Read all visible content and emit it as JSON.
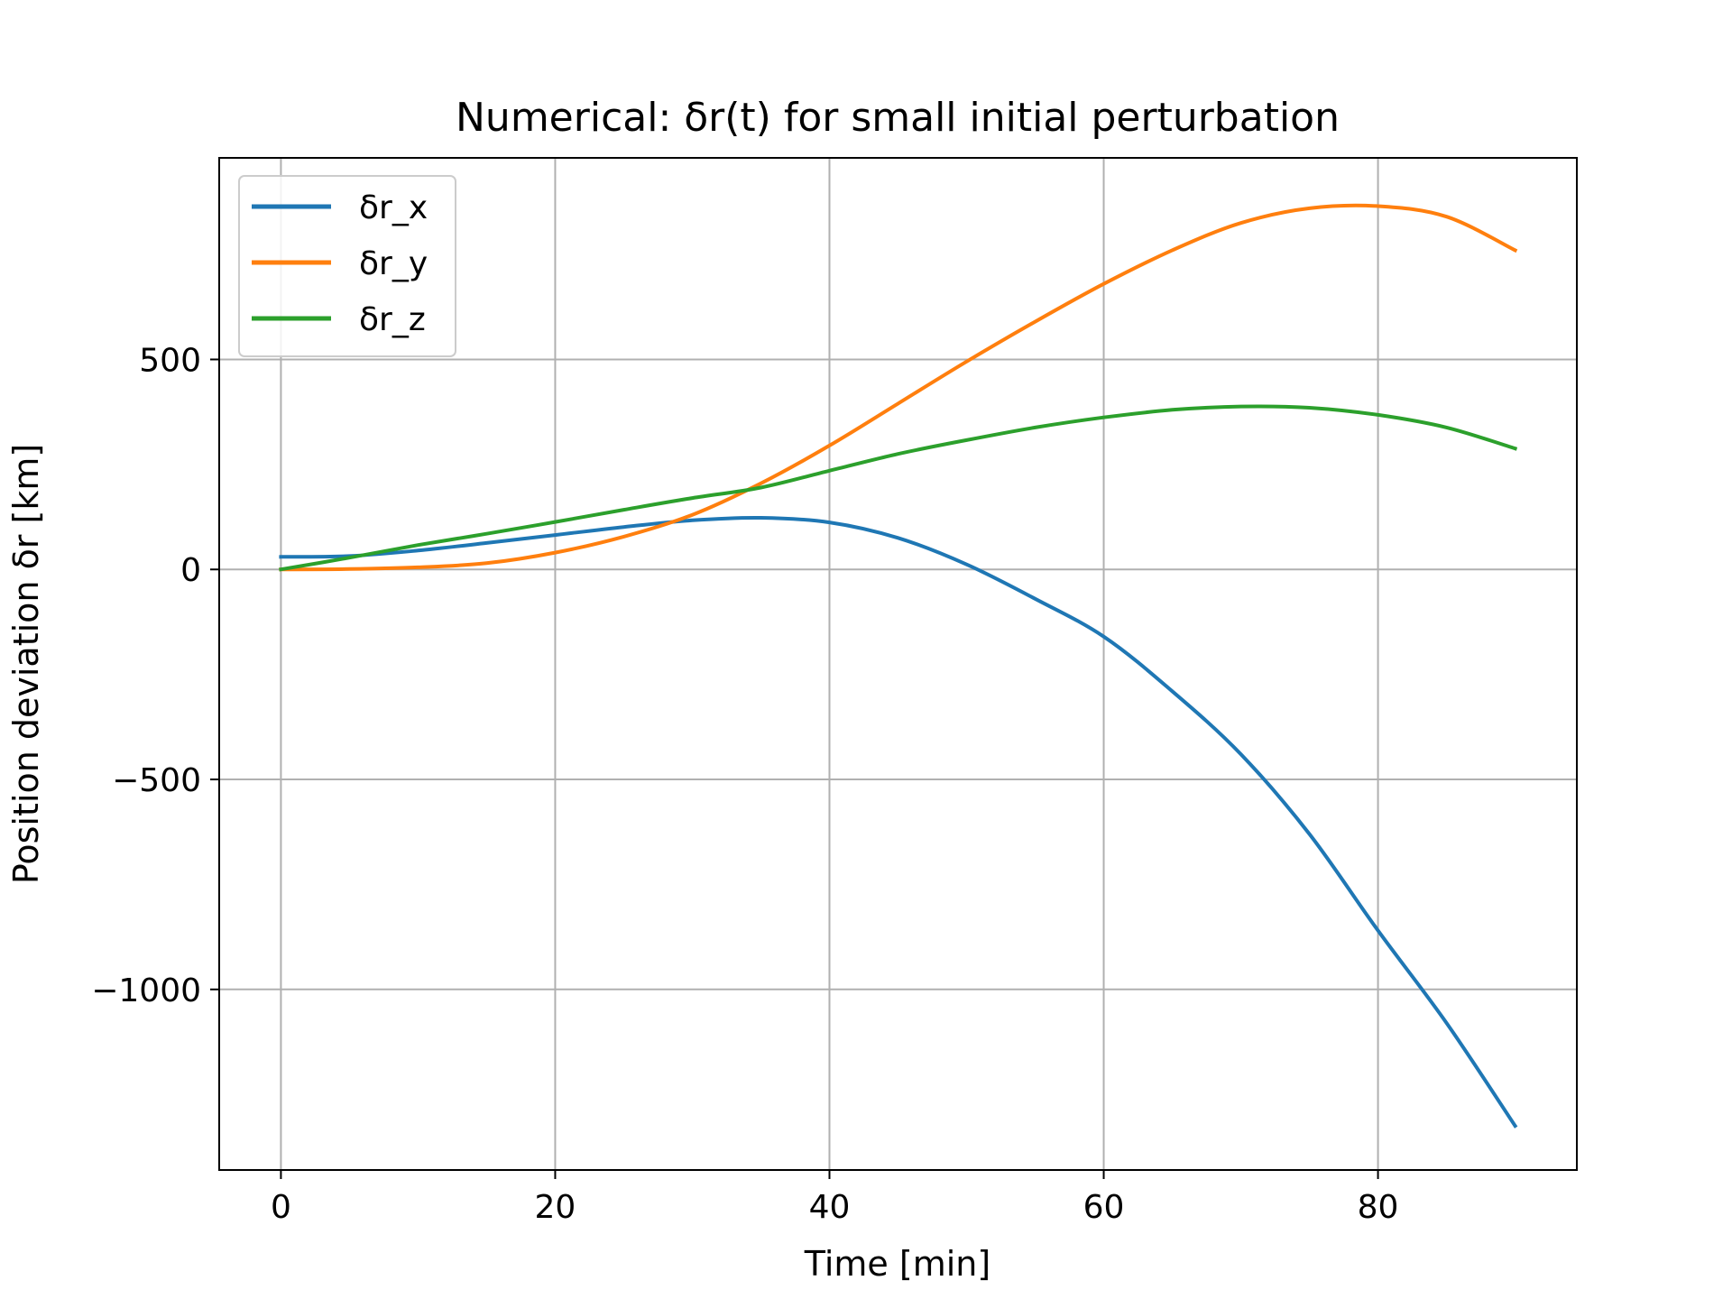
{
  "chart_data": {
    "type": "line",
    "title": "Numerical: δr(t) for small initial perturbation",
    "xlabel": "Time [min]",
    "ylabel": "Position deviation δr [km]",
    "xlim": [
      -4.5,
      94.5
    ],
    "ylim": [
      -1430,
      980
    ],
    "xticks": [
      0,
      20,
      40,
      60,
      80
    ],
    "xtick_labels": [
      "0",
      "20",
      "40",
      "60",
      "80"
    ],
    "yticks": [
      -1000,
      -500,
      0,
      500
    ],
    "ytick_labels": [
      "−1000",
      "−500",
      "0",
      "500"
    ],
    "grid": true,
    "legend_position": "top-left",
    "x": [
      0,
      5,
      10,
      15,
      20,
      25,
      30,
      35,
      40,
      45,
      50,
      55,
      60,
      65,
      70,
      75,
      80,
      85,
      90
    ],
    "series": [
      {
        "name": "δr_x",
        "color": "#1f77b4",
        "values": [
          30,
          32,
          45,
          63,
          82,
          101,
          117,
          123,
          112,
          75,
          12,
          -70,
          -160,
          -290,
          -440,
          -630,
          -860,
          -1080,
          -1325
        ]
      },
      {
        "name": "δr_y",
        "color": "#ff7f0e",
        "values": [
          0,
          1,
          5,
          15,
          40,
          78,
          130,
          205,
          295,
          395,
          495,
          590,
          680,
          760,
          825,
          860,
          865,
          840,
          760
        ]
      },
      {
        "name": "δr_z",
        "color": "#2ca02c",
        "values": [
          0,
          28,
          58,
          85,
          113,
          142,
          170,
          195,
          235,
          275,
          308,
          338,
          362,
          380,
          388,
          385,
          368,
          338,
          288
        ]
      }
    ]
  }
}
